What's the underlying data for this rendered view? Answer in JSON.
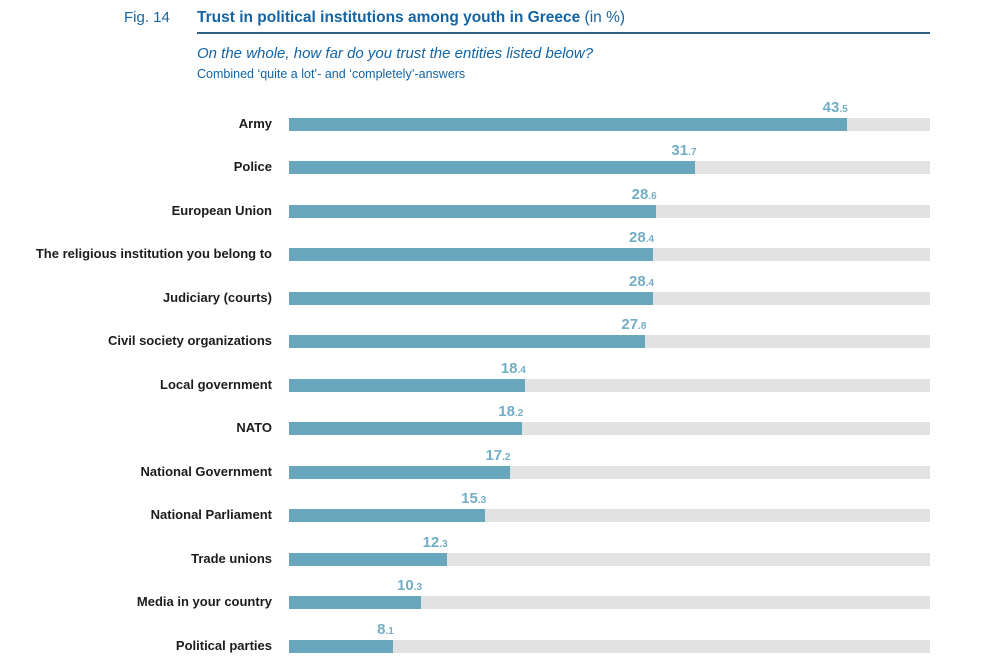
{
  "figure": {
    "label": "Fig. 14",
    "title": "Trust in political institutions among youth in Greece",
    "title_suffix": " (in %)",
    "question": "On the whole, how far do you trust the entities listed below?",
    "note": "Combined ‘quite a lot’- and ‘completely’-answers"
  },
  "colors": {
    "heading_blue": "#1464a4",
    "rule_blue": "#2e5f80",
    "bar_teal": "#68a7bb",
    "value_teal": "#73aec5",
    "track_gray": "#e3e2e2",
    "category_label_dark": "#1c1c1c"
  },
  "chart_data": {
    "type": "bar",
    "orientation": "horizontal",
    "title": "Trust in political institutions among youth in Greece (in %)",
    "subtitle": "On the whole, how far do you trust the entities listed below?",
    "note": "Combined ‘quite a lot’- and ‘completely’-answers",
    "xlabel": "",
    "ylabel": "",
    "xlim": [
      0,
      50
    ],
    "grid": false,
    "legend": false,
    "value_labels": "above bar end, large integer with small decimal",
    "categories": [
      "Army",
      "Police",
      "European Union",
      "The religious institution you belong to",
      "Judiciary (courts)",
      "Civil society organizations",
      "Local government",
      "NATO",
      "National Government",
      "National Parliament",
      "Trade unions",
      "Media in your country",
      "Political parties"
    ],
    "values": [
      43.5,
      31.7,
      28.6,
      28.4,
      28.4,
      27.8,
      18.4,
      18.2,
      17.2,
      15.3,
      12.3,
      10.3,
      8.1
    ]
  }
}
